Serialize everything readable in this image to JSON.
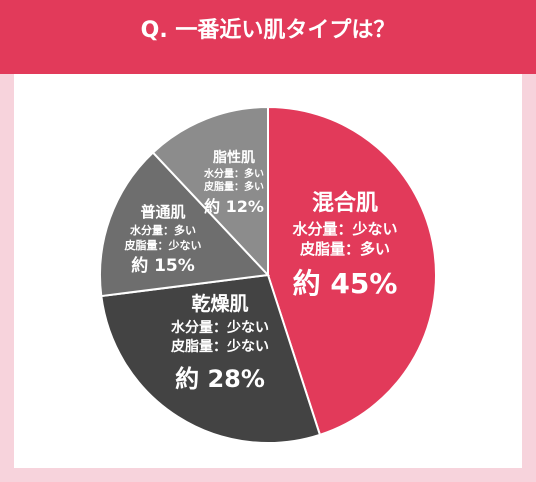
{
  "header": {
    "question": "Q. 一番近い肌タイプは？"
  },
  "colors": {
    "header_bg": "#e23a5a",
    "page_bg": "#f7d3dc",
    "panel_bg": "#ffffff",
    "slice_colors": [
      "#e23a5a",
      "#434343",
      "#6e6e6e",
      "#8c8c8c"
    ],
    "label_color": "#ffffff"
  },
  "chart_data": {
    "type": "pie",
    "title": "",
    "start_angle_deg": 0,
    "direction": "clockwise",
    "slices": [
      {
        "name": "混合肌",
        "value": 45,
        "moisture": "水分量：少ない",
        "sebum": "皮脂量：多い",
        "value_label": "約 45%",
        "color": "#e23a5a"
      },
      {
        "name": "乾燥肌",
        "value": 28,
        "moisture": "水分量：少ない",
        "sebum": "皮脂量：少ない",
        "value_label": "約 28%",
        "color": "#434343"
      },
      {
        "name": "普通肌",
        "value": 15,
        "moisture": "水分量：多い",
        "sebum": "皮脂量：少ない",
        "value_label": "約 15%",
        "color": "#6e6e6e"
      },
      {
        "name": "脂性肌",
        "value": 12,
        "moisture": "水分量：多い",
        "sebum": "皮脂量：多い",
        "value_label": "約 12%",
        "color": "#8c8c8c"
      }
    ]
  }
}
